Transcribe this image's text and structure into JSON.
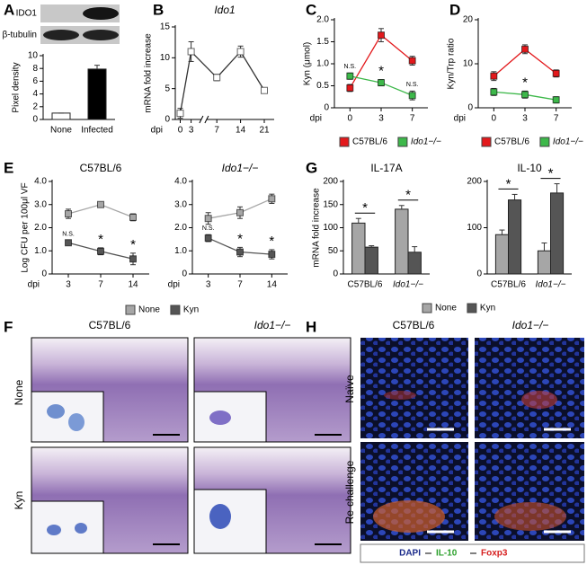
{
  "panel_labels": [
    "A",
    "B",
    "C",
    "D",
    "E",
    "F",
    "G",
    "H"
  ],
  "blot_labels": [
    "IDO1",
    "β-tubulin"
  ],
  "chart_data": [
    {
      "type": "bar",
      "ylabel": "Pixel density",
      "categories": [
        "None",
        "Infected"
      ],
      "values": [
        1,
        7.9
      ],
      "errors": [
        0,
        0.6
      ],
      "colors": [
        "#ffffff",
        "#000000"
      ],
      "ylim": [
        0,
        10
      ],
      "yticks": [
        0,
        2,
        4,
        6,
        8,
        10
      ]
    },
    {
      "type": "line",
      "title": "Ido1",
      "ylabel": "mRNA fold increase",
      "xlabel": "dpi",
      "categories": [
        "0",
        "3",
        "7",
        "14",
        "21"
      ],
      "values": [
        1,
        11,
        6.8,
        11,
        4.7
      ],
      "errors": [
        0.8,
        1.6,
        0.5,
        0.9,
        0.4
      ],
      "color": "#ffffff",
      "ylim": [
        0,
        15
      ],
      "yticks": [
        0,
        5,
        10,
        15
      ]
    },
    {
      "type": "line",
      "ylabel": "Kyn (μmol)",
      "xlabel": "dpi",
      "categories": [
        "0",
        "3",
        "7"
      ],
      "series": [
        {
          "name": "C57BL/6",
          "color": "#e3191c",
          "values": [
            0.45,
            1.65,
            1.07
          ],
          "errors": [
            0.08,
            0.15,
            0.1
          ]
        },
        {
          "name": "Ido1−/−",
          "color": "#3db84a",
          "values": [
            0.72,
            0.57,
            0.28
          ],
          "errors": [
            0.07,
            0.07,
            0.1
          ]
        }
      ],
      "annotations": [
        "N.S.",
        "*",
        "N.S."
      ],
      "ylim": [
        0,
        2
      ],
      "yticks": [
        0,
        0.5,
        {
          "value": 1,
          "label": "1.0"
        },
        1.5,
        {
          "value": 2,
          "label": "2.0"
        }
      ]
    },
    {
      "type": "line",
      "ylabel": "Kyn/Trp ratio",
      "xlabel": "dpi",
      "categories": [
        "0",
        "3",
        "7"
      ],
      "series": [
        {
          "name": "C57BL/6",
          "color": "#e3191c",
          "values": [
            7.2,
            13.3,
            7.8
          ],
          "errors": [
            1,
            1,
            0.8
          ]
        },
        {
          "name": "Ido1−/−",
          "color": "#3db84a",
          "values": [
            3.6,
            3.0,
            1.8
          ],
          "errors": [
            0.8,
            0.8,
            0.7
          ]
        }
      ],
      "annotations": [
        null,
        "*",
        null
      ],
      "ylim": [
        0,
        20
      ],
      "yticks": [
        0,
        10,
        20
      ]
    },
    {
      "type": "line",
      "title": "C57BL/6",
      "ylabel": "Log CFU per 100μl VF",
      "xlabel": "dpi",
      "categories": [
        "3",
        "7",
        "14"
      ],
      "series": [
        {
          "name": "None",
          "color": "#a6a6a6",
          "values": [
            2.6,
            3.0,
            2.45
          ],
          "errors": [
            0.2,
            0.1,
            0.15
          ]
        },
        {
          "name": "Kyn",
          "color": "#555555",
          "values": [
            1.35,
            0.98,
            0.65
          ],
          "errors": [
            0.1,
            0.15,
            0.25
          ]
        }
      ],
      "annotations": [
        "N.S.",
        "*",
        "*"
      ],
      "ylim": [
        0,
        4
      ],
      "yticks": [
        0,
        {
          "value": 1,
          "label": "1.0"
        },
        {
          "value": 2,
          "label": "2.0"
        },
        {
          "value": 3,
          "label": "3.0"
        },
        {
          "value": 4,
          "label": "4.0"
        }
      ]
    },
    {
      "type": "line",
      "title": "Ido1−/−",
      "xlabel": "dpi",
      "categories": [
        "3",
        "7",
        "14"
      ],
      "series": [
        {
          "color": "#a6a6a6",
          "values": [
            2.4,
            2.65,
            3.25
          ],
          "errors": [
            0.25,
            0.25,
            0.2
          ]
        },
        {
          "color": "#555555",
          "values": [
            1.55,
            0.95,
            0.85
          ],
          "errors": [
            0.15,
            0.2,
            0.2
          ]
        }
      ],
      "annotations": [
        "N.S.",
        "*",
        "*"
      ],
      "ylim": [
        0,
        4
      ],
      "yticks": [
        0,
        {
          "value": 1,
          "label": "1.0"
        },
        {
          "value": 2,
          "label": "2.0"
        },
        {
          "value": 3,
          "label": "3.0"
        },
        {
          "value": 4,
          "label": "4.0"
        }
      ]
    },
    {
      "type": "bar",
      "title": "IL-17A",
      "ylabel": "mRNA fold increase",
      "categories": [
        "C57BL/6",
        "Ido1−/−"
      ],
      "series": [
        {
          "name": "None",
          "color": "#a6a6a6",
          "values": [
            110,
            140
          ],
          "errors": [
            10,
            8
          ]
        },
        {
          "name": "Kyn",
          "color": "#555555",
          "values": [
            58,
            47
          ],
          "errors": [
            3,
            12
          ]
        }
      ],
      "annotations": [
        "*",
        "*"
      ],
      "ylim": [
        0,
        200
      ],
      "yticks": [
        0,
        50,
        100,
        150,
        200
      ]
    },
    {
      "type": "bar",
      "title": "IL-10",
      "categories": [
        "C57BL/6",
        "Ido1−/−"
      ],
      "series": [
        {
          "color": "#a6a6a6",
          "values": [
            85,
            50
          ],
          "errors": [
            10,
            17
          ]
        },
        {
          "color": "#555555",
          "values": [
            160,
            175
          ],
          "errors": [
            12,
            20
          ]
        }
      ],
      "annotations": [
        "*",
        "*"
      ],
      "ylim": [
        0,
        200
      ],
      "yticks": [
        0,
        100,
        200
      ]
    }
  ],
  "figure_F": {
    "columns": [
      "C57BL/6",
      "Ido1−/−"
    ],
    "rows": [
      "None",
      "Kyn"
    ]
  },
  "figure_H": {
    "columns": [
      "C57BL/6",
      "Ido1−/−"
    ],
    "rows": [
      "Naïve",
      "Re-challenge"
    ],
    "stains": [
      "DAPI",
      "IL-10",
      "Foxp3"
    ]
  }
}
